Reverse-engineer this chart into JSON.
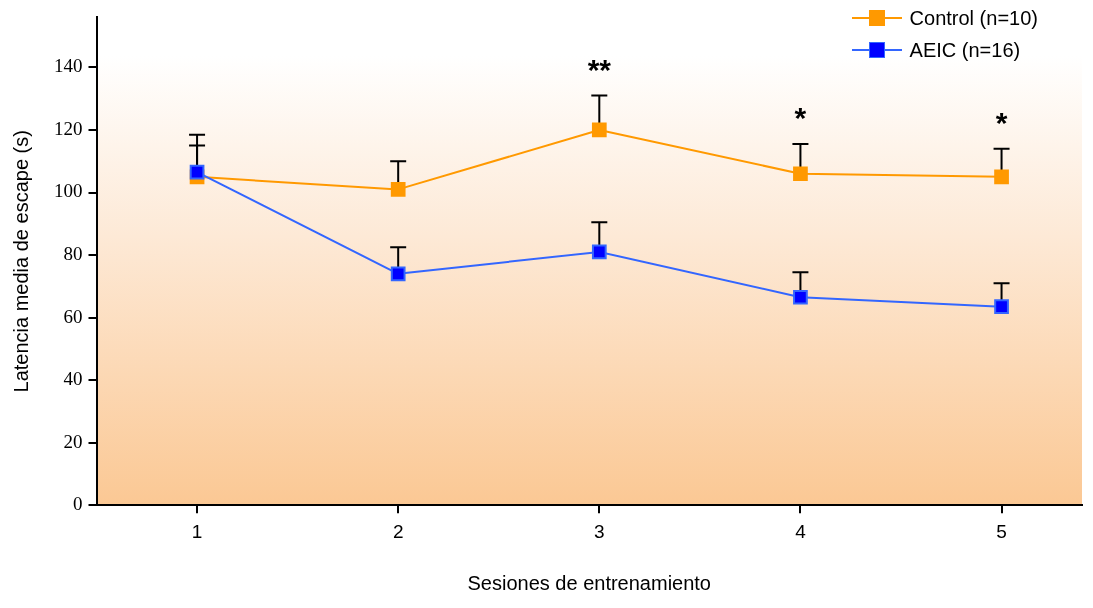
{
  "chart_data": {
    "type": "line",
    "xlabel": "Sesiones de entrenamiento",
    "ylabel": "Latencia media de escape (s)",
    "x": [
      1,
      2,
      3,
      4,
      5
    ],
    "xlim": [
      0.5,
      5.4
    ],
    "xticks": [
      1,
      2,
      3,
      4,
      5
    ],
    "ylim": [
      0,
      156
    ],
    "yticks": [
      0,
      20,
      40,
      60,
      80,
      100,
      120,
      140
    ],
    "grid": false,
    "legend": "top right",
    "marker": "square",
    "line_style": "solid",
    "series": [
      {
        "name": "Control (n=10)",
        "color": "#ff9900",
        "values": [
          105,
          101,
          120,
          106,
          105
        ],
        "errors": [
          [
            105,
            118.5
          ],
          [
            101,
            110
          ],
          [
            120,
            131
          ],
          [
            106,
            115.5
          ],
          [
            105,
            114
          ]
        ]
      },
      {
        "name": "AEIC (n=16)",
        "color": "#3366ff",
        "values": [
          106.5,
          74,
          81,
          66.5,
          63.5
        ],
        "errors": [
          [
            106.5,
            115
          ],
          [
            74,
            82.5
          ],
          [
            81,
            90.5
          ],
          [
            66.5,
            74.5
          ],
          [
            63.5,
            71
          ]
        ]
      }
    ],
    "annotations": [
      {
        "text": "**",
        "x": 3,
        "y": 120
      },
      {
        "text": "*",
        "x": 4,
        "y": 106
      },
      {
        "text": "*",
        "x": 5,
        "y": 105
      }
    ]
  }
}
